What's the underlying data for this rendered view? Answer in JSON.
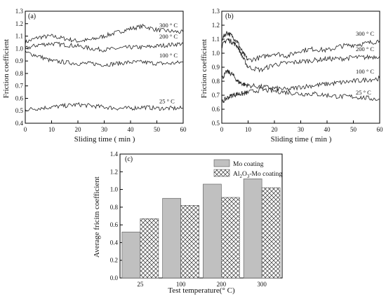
{
  "chart_data": [
    {
      "type": "line",
      "panel_label": "(a)",
      "xlabel": "Sliding time ( min )",
      "ylabel": "Friction coefficient",
      "xlim": [
        0,
        60
      ],
      "ylim": [
        0.4,
        1.3
      ],
      "xticks": [
        "0",
        "10",
        "20",
        "30",
        "40",
        "50",
        "60"
      ],
      "yticks": [
        "0.4",
        "0.5",
        "0.6",
        "0.7",
        "0.8",
        "0.9",
        "1.0",
        "1.1",
        "1.2",
        "1.3"
      ],
      "series": [
        {
          "name": "300 ° C",
          "x": [
            0,
            5,
            10,
            15,
            20,
            25,
            30,
            35,
            40,
            45,
            50,
            55,
            60
          ],
          "y": [
            1.05,
            1.09,
            1.1,
            1.08,
            1.06,
            1.07,
            1.1,
            1.13,
            1.16,
            1.18,
            1.15,
            1.14,
            1.13
          ]
        },
        {
          "name": "200 ° C",
          "x": [
            0,
            5,
            10,
            15,
            20,
            25,
            30,
            35,
            40,
            45,
            50,
            55,
            60
          ],
          "y": [
            1.0,
            1.03,
            1.04,
            1.03,
            1.02,
            1.0,
            0.99,
            1.0,
            1.01,
            1.01,
            1.02,
            1.03,
            1.04
          ]
        },
        {
          "name": "100 ° C",
          "x": [
            0,
            5,
            10,
            15,
            20,
            25,
            30,
            35,
            40,
            45,
            50,
            55,
            60
          ],
          "y": [
            0.97,
            0.94,
            0.9,
            0.89,
            0.88,
            0.88,
            0.87,
            0.88,
            0.89,
            0.89,
            0.88,
            0.88,
            0.89
          ]
        },
        {
          "name": "25 ° C",
          "x": [
            0,
            5,
            10,
            15,
            20,
            25,
            30,
            35,
            40,
            45,
            50,
            55,
            60
          ],
          "y": [
            0.51,
            0.52,
            0.53,
            0.54,
            0.55,
            0.54,
            0.53,
            0.52,
            0.52,
            0.53,
            0.52,
            0.52,
            0.52
          ]
        }
      ]
    },
    {
      "type": "line",
      "panel_label": "(b)",
      "xlabel": "Sliding time ( min )",
      "ylabel": "Friction coefficient",
      "xlim": [
        0,
        60
      ],
      "ylim": [
        0.5,
        1.3
      ],
      "xticks": [
        "0",
        "10",
        "20",
        "30",
        "40",
        "50",
        "60"
      ],
      "yticks": [
        "0.5",
        "0.6",
        "0.7",
        "0.8",
        "0.9",
        "1.0",
        "1.1",
        "1.2",
        "1.3"
      ],
      "series": [
        {
          "name": "300 ° C",
          "x": [
            0,
            2,
            4,
            6,
            8,
            10,
            15,
            20,
            25,
            30,
            35,
            40,
            45,
            50,
            55,
            60
          ],
          "y": [
            1.1,
            1.15,
            1.12,
            1.08,
            1.0,
            0.95,
            0.97,
            1.0,
            0.98,
            1.02,
            1.03,
            1.02,
            1.05,
            1.06,
            1.07,
            1.09
          ]
        },
        {
          "name": "200 ° C",
          "x": [
            0,
            2,
            4,
            6,
            8,
            10,
            15,
            20,
            25,
            30,
            35,
            40,
            45,
            50,
            55,
            60
          ],
          "y": [
            1.05,
            1.1,
            1.08,
            1.05,
            0.97,
            0.9,
            0.88,
            0.92,
            0.93,
            0.94,
            0.95,
            0.96,
            0.96,
            0.97,
            0.97,
            0.98
          ]
        },
        {
          "name": "100 ° C",
          "x": [
            0,
            2,
            4,
            6,
            8,
            10,
            15,
            20,
            25,
            30,
            35,
            40,
            45,
            50,
            55,
            60
          ],
          "y": [
            0.82,
            0.87,
            0.85,
            0.8,
            0.78,
            0.77,
            0.76,
            0.75,
            0.74,
            0.76,
            0.77,
            0.78,
            0.79,
            0.8,
            0.81,
            0.82
          ]
        },
        {
          "name": "25 ° C",
          "x": [
            0,
            2,
            4,
            6,
            8,
            10,
            15,
            20,
            25,
            30,
            35,
            40,
            45,
            50,
            55,
            60
          ],
          "y": [
            0.65,
            0.68,
            0.7,
            0.71,
            0.71,
            0.72,
            0.74,
            0.73,
            0.72,
            0.71,
            0.71,
            0.7,
            0.69,
            0.69,
            0.68,
            0.67
          ]
        }
      ]
    },
    {
      "type": "bar",
      "panel_label": "(c)",
      "xlabel": "Test temperature(° C)",
      "ylabel": "Average fricitn coefficient",
      "ylim": [
        0.0,
        1.4
      ],
      "yticks": [
        "0.0",
        "0.2",
        "0.4",
        "0.6",
        "0.8",
        "1.0",
        "1.2",
        "1.4"
      ],
      "categories": [
        "25",
        "100",
        "200",
        "300"
      ],
      "legend_placement": "top-right",
      "series": [
        {
          "name": "Mo coating",
          "values": [
            0.52,
            0.9,
            1.06,
            1.12
          ],
          "color": "#c0c0c0",
          "pattern": "solid"
        },
        {
          "name": "Al2O3-Mo coating",
          "legend_parts": [
            "Al",
            "2",
            "O",
            "3",
            "-Mo coating"
          ],
          "values": [
            0.67,
            0.82,
            0.91,
            1.02
          ],
          "color": "#ffffff",
          "pattern": "crosshatch"
        }
      ]
    }
  ]
}
